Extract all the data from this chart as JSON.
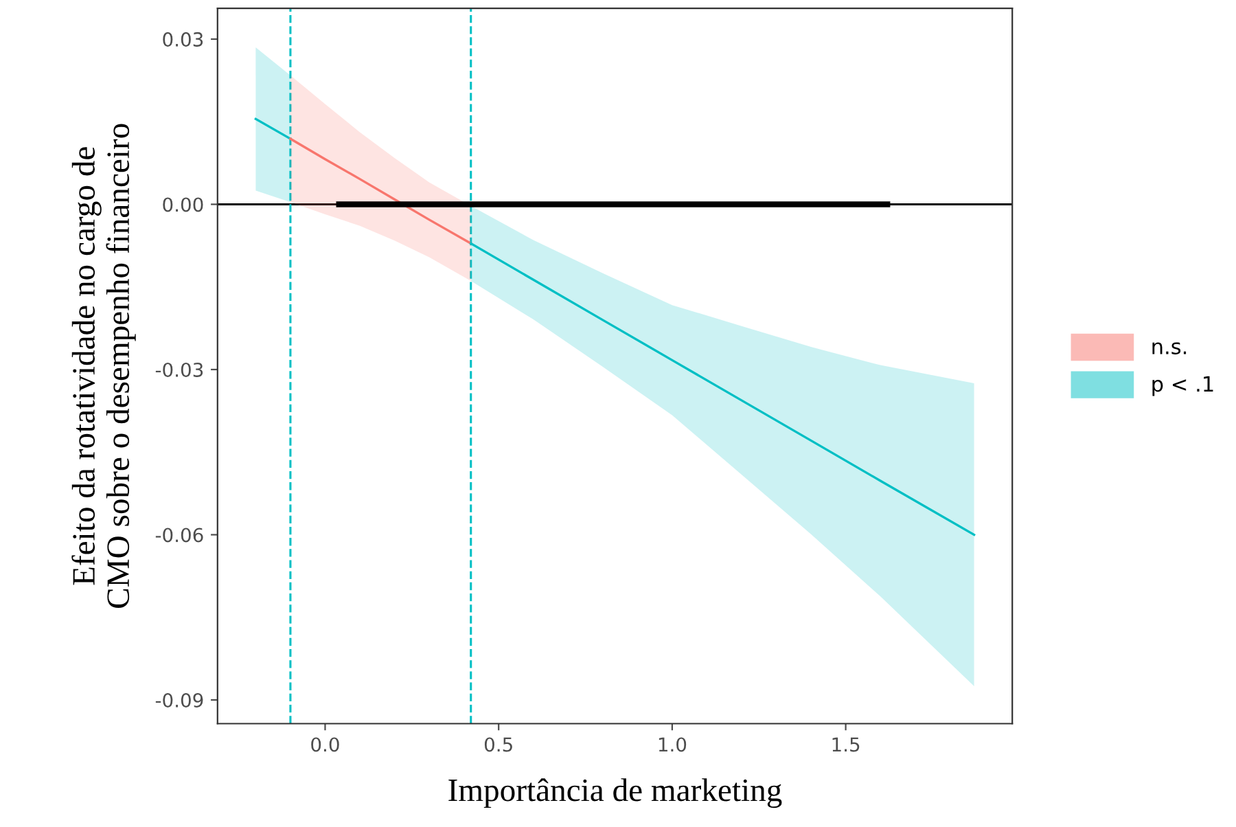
{
  "chart_data": {
    "type": "line",
    "xlabel": "Importância de marketing",
    "ylabel": "Efeito da rotatividade no cargo de\nCMO sobre o desempenho financeiro",
    "xlim": [
      -0.31,
      1.98
    ],
    "ylim": [
      -0.0943,
      0.0356
    ],
    "xticks": [
      {
        "value": 0,
        "label": "0.0"
      },
      0.5,
      {
        "value": 1,
        "label": "1.0"
      },
      1.5
    ],
    "yticks": [
      {
        "value": 0.03,
        "label": "0.03"
      },
      {
        "value": 0,
        "label": "0.00"
      },
      {
        "value": -0.03,
        "label": "-0.03"
      },
      {
        "value": -0.06,
        "label": "-0.06"
      },
      {
        "value": -0.09,
        "label": "-0.09"
      }
    ],
    "grid": false,
    "legend": "right",
    "series": [
      {
        "color": "#00bfc4",
        "x": [
          -0.2,
          -0.1
        ],
        "values": [
          0.0155,
          0.0119
        ],
        "lower": [
          0.0025,
          0.0004
        ],
        "upper": [
          0.0285,
          0.0234
        ]
      },
      {
        "name": "n.s.",
        "color": "#f8766d",
        "x": [
          -0.1,
          0.0,
          0.1,
          0.2,
          0.3,
          0.42
        ],
        "values": [
          0.0119,
          0.0082,
          0.0046,
          0.0009,
          -0.0028,
          -0.0071
        ],
        "lower": [
          0.0004,
          -0.0018,
          -0.0039,
          -0.0066,
          -0.0096,
          -0.0139
        ],
        "upper": [
          0.0234,
          0.0182,
          0.0131,
          0.0084,
          0.004,
          -0.0003
        ]
      },
      {
        "name": "p < .1",
        "color": "#00bfc4",
        "x": [
          0.42,
          0.6,
          0.8,
          1.0,
          1.2,
          1.4,
          1.6,
          1.87
        ],
        "values": [
          -0.0071,
          -0.0137,
          -0.021,
          -0.0283,
          -0.0356,
          -0.0429,
          -0.0502,
          -0.06
        ],
        "lower": [
          -0.0139,
          -0.0209,
          -0.0295,
          -0.0383,
          -0.0491,
          -0.0599,
          -0.0712,
          -0.0875
        ],
        "upper": [
          -0.0003,
          -0.0065,
          -0.0125,
          -0.0183,
          -0.0221,
          -0.0259,
          -0.0292,
          -0.0325
        ]
      },
      {
        "color": "#000000",
        "x": [
          0.04,
          1.62
        ],
        "values": [
          0,
          0
        ]
      }
    ],
    "ref_lines": [
      {
        "axis": "y",
        "value": 0,
        "color": "#000000",
        "line_style": "solid"
      },
      {
        "axis": "x",
        "value": -0.1,
        "color": "#00bfc4",
        "line_style": "dashed"
      },
      {
        "axis": "x",
        "value": 0.42,
        "color": "#00bfc4",
        "line_style": "dashed"
      }
    ]
  }
}
